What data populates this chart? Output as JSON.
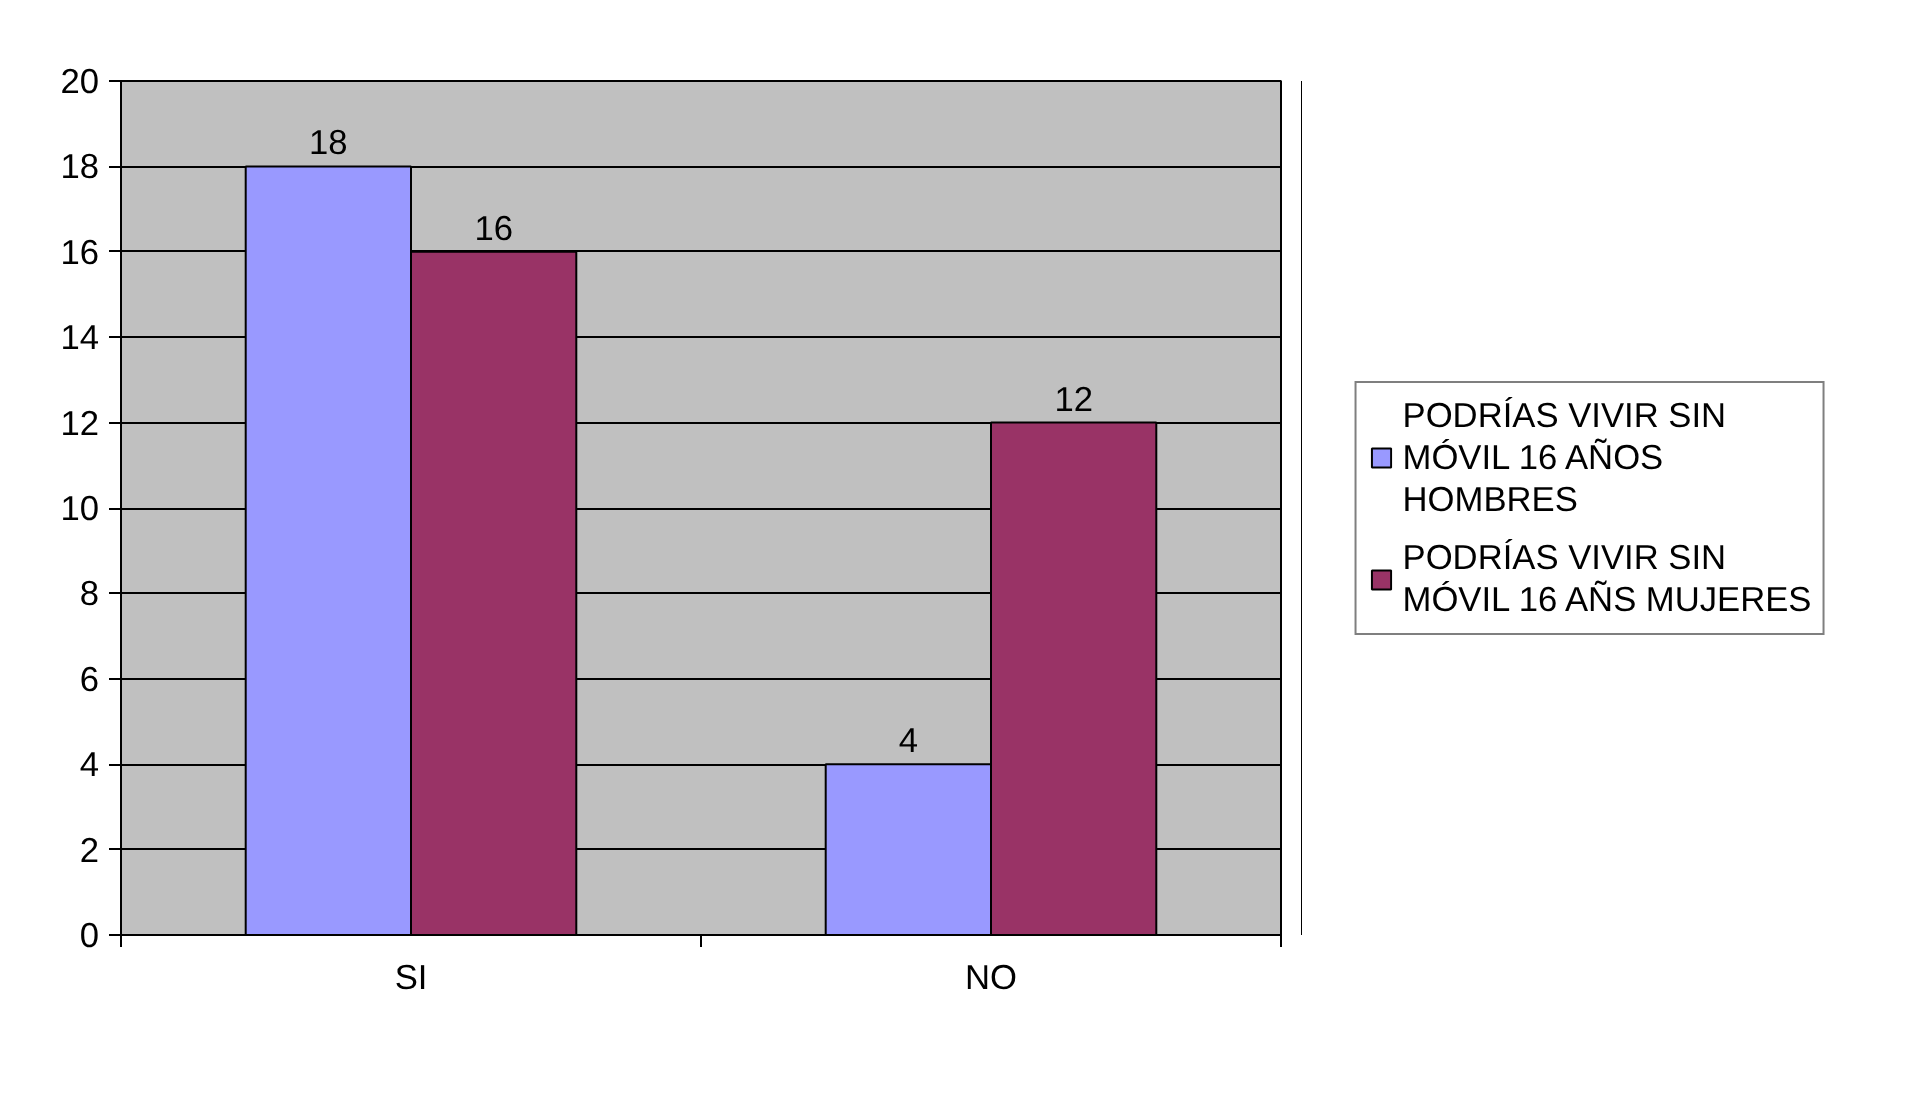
{
  "chart_data": {
    "type": "bar",
    "categories": [
      "SI",
      "NO"
    ],
    "series": [
      {
        "name": "PODRÍAS VIVIR SIN MÓVIL 16 AÑOS HOMBRES",
        "color": "#9999ff",
        "values": [
          18,
          4
        ]
      },
      {
        "name": "PODRÍAS VIVIR SIN MÓVIL 16 AÑS MUJERES",
        "color": "#993366",
        "values": [
          16,
          12
        ]
      }
    ],
    "ylim": [
      0,
      20
    ],
    "yticks": [
      0,
      2,
      4,
      6,
      8,
      10,
      12,
      14,
      16,
      18,
      20
    ],
    "grid": "y",
    "legend": "right",
    "data_labels": true
  }
}
